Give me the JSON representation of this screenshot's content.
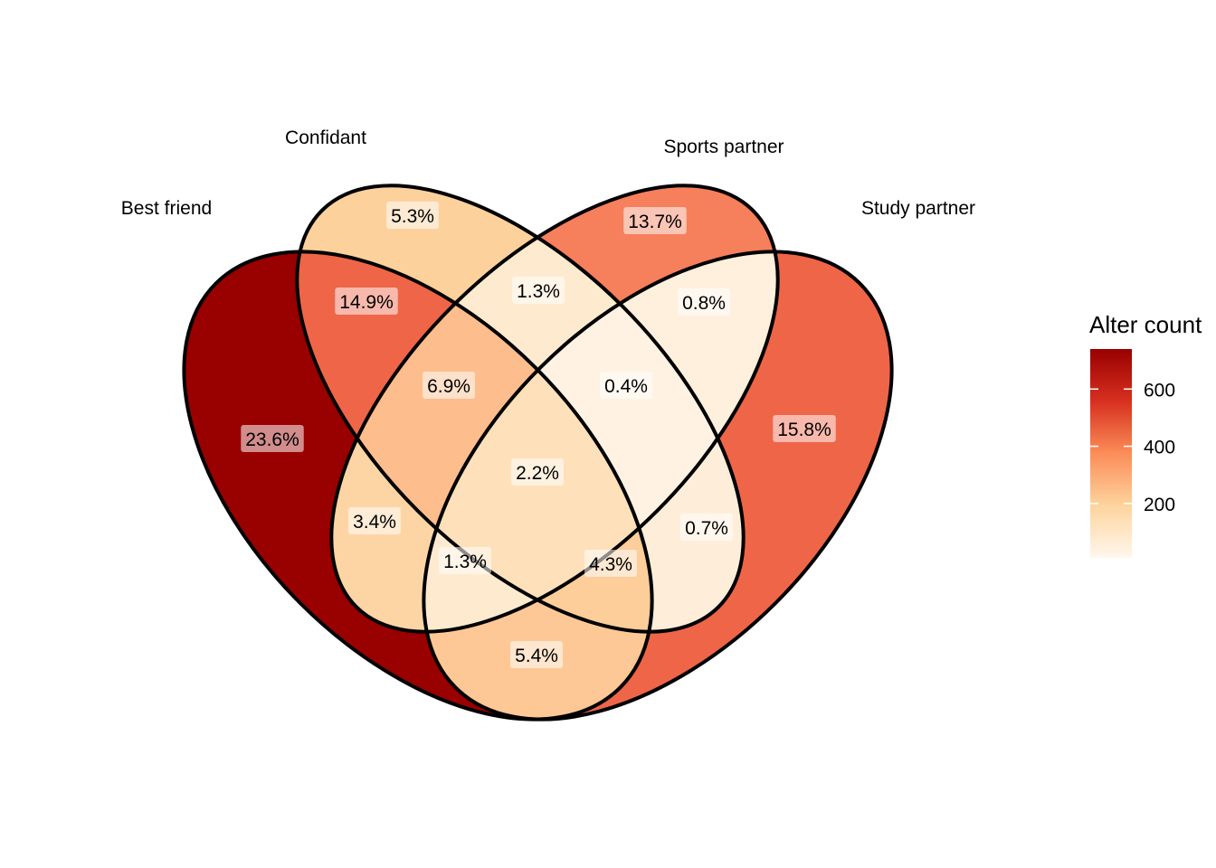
{
  "sets": [
    {
      "key": "best_friend",
      "label": "Best friend"
    },
    {
      "key": "confidant",
      "label": "Confidant"
    },
    {
      "key": "sports_partner",
      "label": "Sports partner"
    },
    {
      "key": "study_partner",
      "label": "Study partner"
    }
  ],
  "regions": [
    {
      "sets": [
        "best_friend"
      ],
      "label": "23.6%",
      "color": "#990000"
    },
    {
      "sets": [
        "confidant"
      ],
      "label": "5.3%",
      "color": "#fcd19c"
    },
    {
      "sets": [
        "sports_partner"
      ],
      "label": "13.7%",
      "color": "#f67f5c"
    },
    {
      "sets": [
        "study_partner"
      ],
      "label": "15.8%",
      "color": "#ef6548"
    },
    {
      "sets": [
        "best_friend",
        "confidant"
      ],
      "label": "14.9%",
      "color": "#ef6548"
    },
    {
      "sets": [
        "confidant",
        "sports_partner"
      ],
      "label": "1.3%",
      "color": "#feebcf"
    },
    {
      "sets": [
        "sports_partner",
        "study_partner"
      ],
      "label": "0.8%",
      "color": "#fff0dd"
    },
    {
      "sets": [
        "best_friend",
        "confidant",
        "sports_partner"
      ],
      "label": "6.9%",
      "color": "#fdbd8c"
    },
    {
      "sets": [
        "confidant",
        "sports_partner",
        "study_partner"
      ],
      "label": "0.4%",
      "color": "#fff2e2"
    },
    {
      "sets": [
        "best_friend",
        "sports_partner"
      ],
      "label": "3.4%",
      "color": "#fdd5a5"
    },
    {
      "sets": [
        "best_friend",
        "confidant",
        "sports_partner",
        "study_partner"
      ],
      "label": "2.2%",
      "color": "#fee0bb"
    },
    {
      "sets": [
        "confidant",
        "study_partner"
      ],
      "label": "0.7%",
      "color": "#feeed9"
    },
    {
      "sets": [
        "best_friend",
        "sports_partner",
        "study_partner"
      ],
      "label": "1.3%",
      "color": "#feeacf"
    },
    {
      "sets": [
        "best_friend",
        "confidant",
        "study_partner"
      ],
      "label": "4.3%",
      "color": "#fdcd9a"
    },
    {
      "sets": [
        "best_friend",
        "study_partner"
      ],
      "label": "5.4%",
      "color": "#fdc895"
    }
  ],
  "legend": {
    "title": "Alter count",
    "ticks": [
      600,
      400,
      200
    ],
    "colors": [
      "#fff7ec",
      "#fdd49e",
      "#fc8d59",
      "#d7301f",
      "#990000"
    ],
    "min": 10,
    "max": 740
  }
}
